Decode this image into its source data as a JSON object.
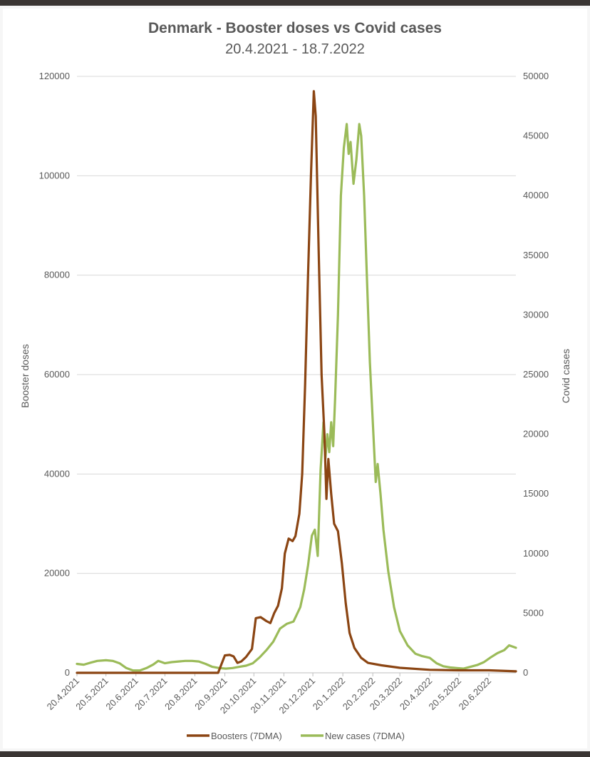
{
  "chart_data": {
    "type": "line",
    "title": "Denmark - Booster doses vs Covid cases",
    "subtitle": "20.4.2021 - 18.7.2022",
    "ylabel_left": "Booster doses",
    "ylabel_right": "Covid cases",
    "ylim_left": [
      0,
      120000
    ],
    "ylim_right": [
      0,
      50000
    ],
    "yticks_left": [
      "0",
      "20000",
      "40000",
      "60000",
      "80000",
      "100000",
      "120000"
    ],
    "yticks_right": [
      "0",
      "5000",
      "10000",
      "15000",
      "20000",
      "25000",
      "30000",
      "35000",
      "40000",
      "45000",
      "50000"
    ],
    "x_range": [
      "2021-04-20",
      "2022-07-18"
    ],
    "xticks": [
      {
        "label": "20.4.2021",
        "date": "2021-04-20"
      },
      {
        "label": "20.5.2021",
        "date": "2021-05-20"
      },
      {
        "label": "20.6.2021",
        "date": "2021-06-20"
      },
      {
        "label": "20.7.2021",
        "date": "2021-07-20"
      },
      {
        "label": "20.8.2021",
        "date": "2021-08-20"
      },
      {
        "label": "20.9.2021",
        "date": "2021-09-20"
      },
      {
        "label": "20.10.2021",
        "date": "2021-10-20"
      },
      {
        "label": "20.11.2021",
        "date": "2021-11-20"
      },
      {
        "label": "20.12.2021",
        "date": "2021-12-20"
      },
      {
        "label": "20.1.2022",
        "date": "2022-01-20"
      },
      {
        "label": "20.2.2022",
        "date": "2022-02-20"
      },
      {
        "label": "20.3.2022",
        "date": "2022-03-20"
      },
      {
        "label": "20.4.2022",
        "date": "2022-04-20"
      },
      {
        "label": "20.5.2022",
        "date": "2022-05-20"
      },
      {
        "label": "20.6.2022",
        "date": "2022-06-20"
      }
    ],
    "grid": true,
    "legend_position": "bottom",
    "series": [
      {
        "name": "Boosters (7DMA)",
        "axis": "left",
        "color": "#8b4513",
        "points": [
          [
            "2021-04-20",
            0
          ],
          [
            "2021-06-01",
            0
          ],
          [
            "2021-08-01",
            0
          ],
          [
            "2021-09-13",
            0
          ],
          [
            "2021-09-20",
            3500
          ],
          [
            "2021-09-25",
            3600
          ],
          [
            "2021-09-29",
            3300
          ],
          [
            "2021-10-03",
            2000
          ],
          [
            "2021-10-07",
            2300
          ],
          [
            "2021-10-12",
            3200
          ],
          [
            "2021-10-18",
            4800
          ],
          [
            "2021-10-22",
            11000
          ],
          [
            "2021-10-27",
            11200
          ],
          [
            "2021-11-02",
            10400
          ],
          [
            "2021-11-06",
            10000
          ],
          [
            "2021-11-10",
            12000
          ],
          [
            "2021-11-14",
            13500
          ],
          [
            "2021-11-18",
            17000
          ],
          [
            "2021-11-21",
            24000
          ],
          [
            "2021-11-25",
            27000
          ],
          [
            "2021-11-29",
            26500
          ],
          [
            "2021-12-02",
            27500
          ],
          [
            "2021-12-06",
            32000
          ],
          [
            "2021-12-09",
            40000
          ],
          [
            "2021-12-12",
            58000
          ],
          [
            "2021-12-15",
            80000
          ],
          [
            "2021-12-18",
            100000
          ],
          [
            "2021-12-21",
            117000
          ],
          [
            "2021-12-23",
            112000
          ],
          [
            "2021-12-26",
            85000
          ],
          [
            "2021-12-29",
            60000
          ],
          [
            "2022-01-01",
            48000
          ],
          [
            "2022-01-03",
            35000
          ],
          [
            "2022-01-05",
            43000
          ],
          [
            "2022-01-08",
            36000
          ],
          [
            "2022-01-11",
            30000
          ],
          [
            "2022-01-15",
            28500
          ],
          [
            "2022-01-19",
            22000
          ],
          [
            "2022-01-23",
            14000
          ],
          [
            "2022-01-27",
            8000
          ],
          [
            "2022-02-01",
            5000
          ],
          [
            "2022-02-08",
            3000
          ],
          [
            "2022-02-15",
            2000
          ],
          [
            "2022-03-01",
            1500
          ],
          [
            "2022-03-20",
            1000
          ],
          [
            "2022-04-20",
            600
          ],
          [
            "2022-05-20",
            500
          ],
          [
            "2022-06-20",
            500
          ],
          [
            "2022-07-18",
            300
          ]
        ]
      },
      {
        "name": "New cases (7DMA)",
        "axis": "right",
        "color": "#9bbb59",
        "points": [
          [
            "2021-04-20",
            750
          ],
          [
            "2021-04-27",
            680
          ],
          [
            "2021-05-04",
            850
          ],
          [
            "2021-05-11",
            1000
          ],
          [
            "2021-05-20",
            1050
          ],
          [
            "2021-05-27",
            1000
          ],
          [
            "2021-06-03",
            800
          ],
          [
            "2021-06-10",
            400
          ],
          [
            "2021-06-17",
            200
          ],
          [
            "2021-06-24",
            200
          ],
          [
            "2021-07-01",
            400
          ],
          [
            "2021-07-08",
            700
          ],
          [
            "2021-07-13",
            1000
          ],
          [
            "2021-07-20",
            800
          ],
          [
            "2021-07-27",
            900
          ],
          [
            "2021-08-03",
            950
          ],
          [
            "2021-08-10",
            1000
          ],
          [
            "2021-08-17",
            1000
          ],
          [
            "2021-08-24",
            950
          ],
          [
            "2021-08-31",
            750
          ],
          [
            "2021-09-07",
            500
          ],
          [
            "2021-09-14",
            400
          ],
          [
            "2021-09-21",
            350
          ],
          [
            "2021-09-28",
            400
          ],
          [
            "2021-10-05",
            500
          ],
          [
            "2021-10-12",
            600
          ],
          [
            "2021-10-19",
            800
          ],
          [
            "2021-10-26",
            1300
          ],
          [
            "2021-11-02",
            1900
          ],
          [
            "2021-11-09",
            2600
          ],
          [
            "2021-11-16",
            3700
          ],
          [
            "2021-11-23",
            4100
          ],
          [
            "2021-11-30",
            4300
          ],
          [
            "2021-12-07",
            5500
          ],
          [
            "2021-12-11",
            7000
          ],
          [
            "2021-12-15",
            9000
          ],
          [
            "2021-12-19",
            11500
          ],
          [
            "2021-12-22",
            12000
          ],
          [
            "2021-12-25",
            9800
          ],
          [
            "2021-12-28",
            17000
          ],
          [
            "2021-12-31",
            21000
          ],
          [
            "2022-01-02",
            18000
          ],
          [
            "2022-01-04",
            20000
          ],
          [
            "2022-01-06",
            18500
          ],
          [
            "2022-01-08",
            21000
          ],
          [
            "2022-01-10",
            19000
          ],
          [
            "2022-01-12",
            23000
          ],
          [
            "2022-01-15",
            30000
          ],
          [
            "2022-01-18",
            40000
          ],
          [
            "2022-01-21",
            44000
          ],
          [
            "2022-01-24",
            46000
          ],
          [
            "2022-01-26",
            43500
          ],
          [
            "2022-01-28",
            44500
          ],
          [
            "2022-01-31",
            41000
          ],
          [
            "2022-02-03",
            43000
          ],
          [
            "2022-02-06",
            46000
          ],
          [
            "2022-02-08",
            45000
          ],
          [
            "2022-02-11",
            40000
          ],
          [
            "2022-02-14",
            33000
          ],
          [
            "2022-02-17",
            26000
          ],
          [
            "2022-02-20",
            21000
          ],
          [
            "2022-02-23",
            16000
          ],
          [
            "2022-02-25",
            17500
          ],
          [
            "2022-02-28",
            15000
          ],
          [
            "2022-03-03",
            12000
          ],
          [
            "2022-03-08",
            8500
          ],
          [
            "2022-03-14",
            5500
          ],
          [
            "2022-03-20",
            3500
          ],
          [
            "2022-03-28",
            2300
          ],
          [
            "2022-04-05",
            1600
          ],
          [
            "2022-04-12",
            1400
          ],
          [
            "2022-04-20",
            1250
          ],
          [
            "2022-04-27",
            800
          ],
          [
            "2022-05-04",
            550
          ],
          [
            "2022-05-11",
            450
          ],
          [
            "2022-05-18",
            400
          ],
          [
            "2022-05-25",
            350
          ],
          [
            "2022-06-01",
            500
          ],
          [
            "2022-06-08",
            650
          ],
          [
            "2022-06-15",
            900
          ],
          [
            "2022-06-22",
            1300
          ],
          [
            "2022-06-29",
            1650
          ],
          [
            "2022-07-06",
            1900
          ],
          [
            "2022-07-11",
            2300
          ],
          [
            "2022-07-18",
            2100
          ]
        ]
      }
    ]
  }
}
